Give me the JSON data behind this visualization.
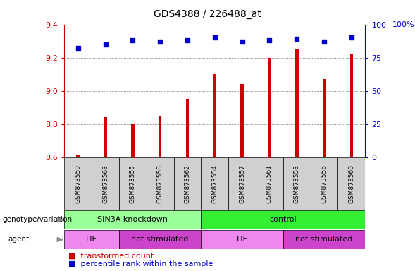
{
  "title": "GDS4388 / 226488_at",
  "samples": [
    "GSM873559",
    "GSM873563",
    "GSM873555",
    "GSM873558",
    "GSM873562",
    "GSM873554",
    "GSM873557",
    "GSM873561",
    "GSM873553",
    "GSM873556",
    "GSM873560"
  ],
  "transformed_counts": [
    8.61,
    8.84,
    8.8,
    8.85,
    8.95,
    9.1,
    9.04,
    9.2,
    9.25,
    9.07,
    9.22
  ],
  "percentile_ranks": [
    82,
    85,
    88,
    87,
    88,
    90,
    87,
    88,
    89,
    87,
    90
  ],
  "ylim_left": [
    8.6,
    9.4
  ],
  "ylim_right": [
    0,
    100
  ],
  "yticks_left": [
    8.6,
    8.8,
    9.0,
    9.2,
    9.4
  ],
  "yticks_right": [
    0,
    25,
    50,
    75,
    100
  ],
  "bar_color": "#cc0000",
  "dot_color": "#0000cc",
  "bar_width": 0.12,
  "groups": {
    "genotype": [
      {
        "label": "SIN3A knockdown",
        "start": 0,
        "end": 5,
        "color": "#99ff99"
      },
      {
        "label": "control",
        "start": 5,
        "end": 11,
        "color": "#33ee33"
      }
    ],
    "agent": [
      {
        "label": "LIF",
        "start": 0,
        "end": 2,
        "color": "#ee88ee"
      },
      {
        "label": "not stimulated",
        "start": 2,
        "end": 5,
        "color": "#cc44cc"
      },
      {
        "label": "LIF",
        "start": 5,
        "end": 8,
        "color": "#ee88ee"
      },
      {
        "label": "not stimulated",
        "start": 8,
        "end": 11,
        "color": "#cc44cc"
      }
    ]
  },
  "left_label_geno": "genotype/variation",
  "left_label_agent": "agent",
  "background_color": "#ffffff",
  "grid_color": "#333333",
  "tick_color_left": "#cc0000",
  "tick_color_right": "#0000cc",
  "cell_bg": "#d0d0d0",
  "right_axis_label": "100%"
}
